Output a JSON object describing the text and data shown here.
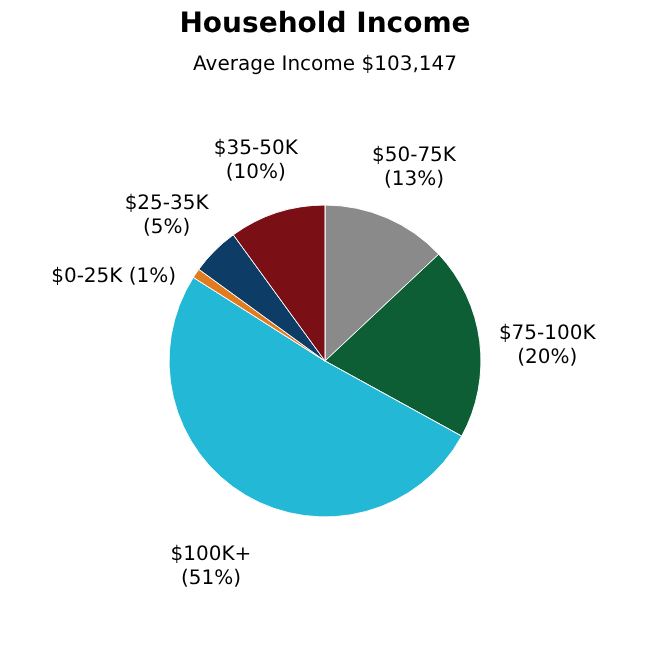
{
  "chart_data": {
    "type": "pie",
    "title": "Household Income",
    "subtitle": "Average Income  $103,147",
    "categories": [
      "$50-75K",
      "$75-100K",
      "$100K+",
      "$0-25K",
      "$25-35K",
      "$35-50K"
    ],
    "values": [
      13,
      20,
      51,
      1,
      5,
      10
    ],
    "colors": [
      "#8a8a8a",
      "#0e5e35",
      "#22b8d6",
      "#e07b20",
      "#0d3d66",
      "#7a1016"
    ],
    "value_labels": [
      "(13%)",
      "(20%)",
      "(51%)",
      "(1%)",
      "(5%)",
      "(10%)"
    ],
    "legend": false
  }
}
